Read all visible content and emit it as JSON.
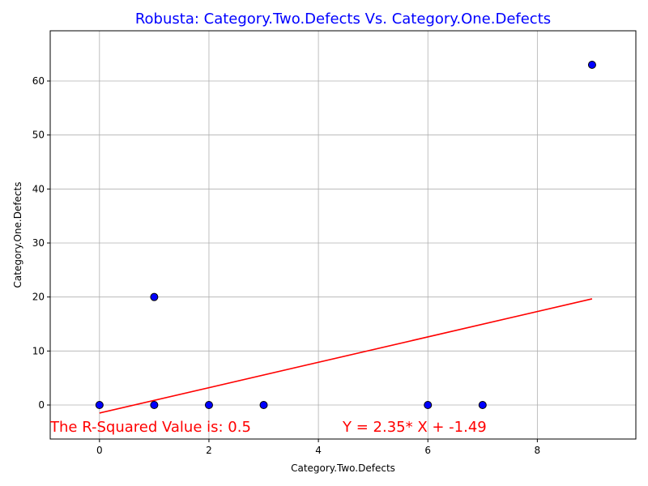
{
  "chart_data": {
    "type": "scatter",
    "title": "Robusta: Category.Two.Defects Vs. Category.One.Defects",
    "xlabel": "Category.Two.Defects",
    "ylabel": "Category.One.Defects",
    "xlim": [
      -0.9,
      9.8
    ],
    "ylim": [
      -6.3,
      69.3
    ],
    "xticks": [
      0,
      2,
      4,
      6,
      8
    ],
    "yticks": [
      0,
      10,
      20,
      30,
      40,
      50,
      60
    ],
    "grid": true,
    "points": [
      {
        "x": 0,
        "y": 0
      },
      {
        "x": 1,
        "y": 0
      },
      {
        "x": 1,
        "y": 20
      },
      {
        "x": 2,
        "y": 0
      },
      {
        "x": 3,
        "y": 0
      },
      {
        "x": 6,
        "y": 0
      },
      {
        "x": 7,
        "y": 0
      },
      {
        "x": 9,
        "y": 63
      }
    ],
    "regression": {
      "slope": 2.35,
      "intercept": -1.49,
      "x_range": [
        0,
        9
      ]
    },
    "annotations": {
      "r_squared": "The R-Squared Value is: 0.5",
      "equation": "Y = 2.35* X + -1.49"
    },
    "colors": {
      "title": "#0000ff",
      "points_fill": "#0000ff",
      "points_edge": "#000000",
      "regression_line": "#ff0000",
      "annotation": "#ff0000",
      "grid": "#b0b0b0"
    }
  }
}
